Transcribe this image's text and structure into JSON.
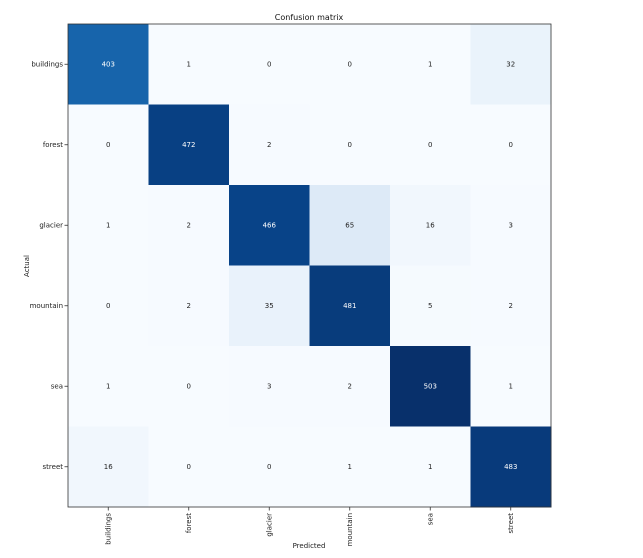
{
  "chart_data": {
    "type": "heatmap",
    "title": "Confusion matrix",
    "xlabel": "Predicted",
    "ylabel": "Actual",
    "x_categories": [
      "buildings",
      "forest",
      "glacier",
      "mountain",
      "sea",
      "street"
    ],
    "y_categories": [
      "buildings",
      "forest",
      "glacier",
      "mountain",
      "sea",
      "street"
    ],
    "values": [
      [
        403,
        1,
        0,
        0,
        1,
        32
      ],
      [
        0,
        472,
        2,
        0,
        0,
        0
      ],
      [
        1,
        2,
        466,
        65,
        16,
        3
      ],
      [
        0,
        2,
        35,
        481,
        5,
        2
      ],
      [
        1,
        0,
        3,
        2,
        503,
        1
      ],
      [
        16,
        0,
        0,
        1,
        1,
        483
      ]
    ],
    "colormap": "Blues",
    "color_low": "#f7fbff",
    "color_high": "#08306b",
    "text_light": "#ffffff",
    "text_dark": "#222222"
  }
}
